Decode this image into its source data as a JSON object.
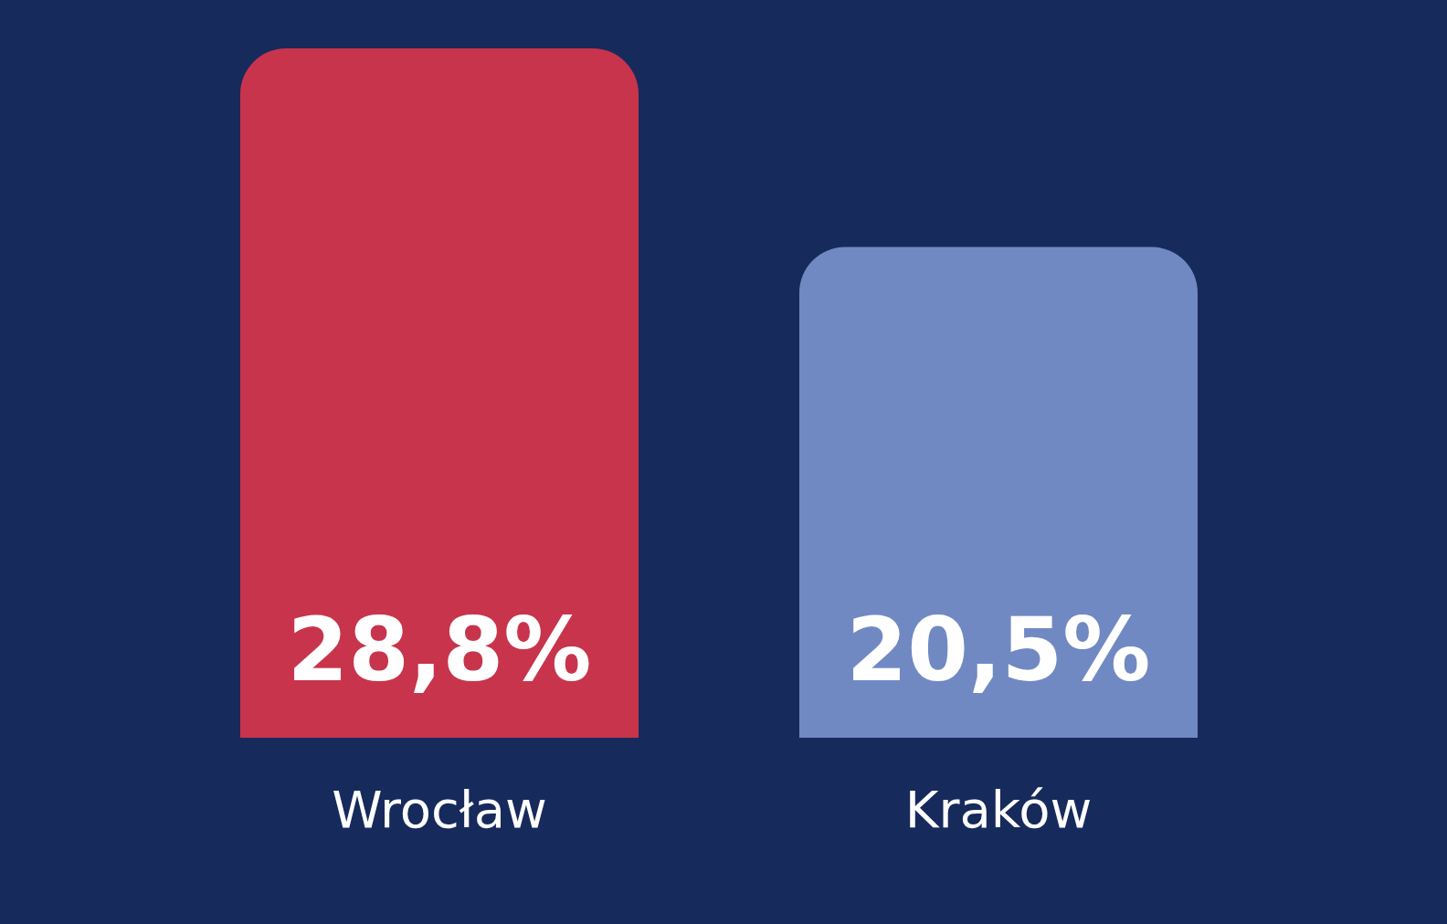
{
  "chart_data": {
    "type": "bar",
    "categories": [
      "Wrocław",
      "Kraków"
    ],
    "values": [
      28.8,
      20.5
    ],
    "colors": [
      "#c8344c",
      "#7189c3"
    ],
    "value_labels": [
      "28,8%",
      "20,5%"
    ]
  }
}
